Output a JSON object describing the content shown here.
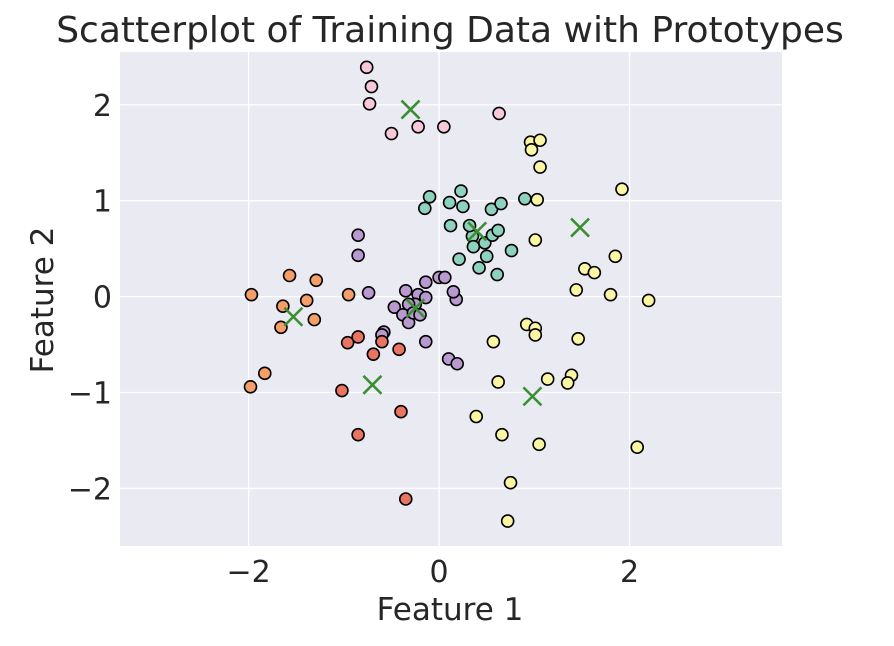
{
  "chart_data": {
    "type": "scatter",
    "title": "Scatterplot of Training Data with Prototypes",
    "xlabel": "Feature 1",
    "ylabel": "Feature 2",
    "xlim": [
      -3.35,
      3.6
    ],
    "ylim": [
      -2.6,
      2.55
    ],
    "xticks": [
      -2,
      0,
      2
    ],
    "yticks": [
      -2,
      -1,
      0,
      1,
      2
    ],
    "xtick_labels": [
      "−2",
      "0",
      "2"
    ],
    "ytick_labels": [
      "−2",
      "−1",
      "0",
      "1",
      "2"
    ],
    "grid": true,
    "legend": "none",
    "colors": {
      "background": "#eaeaf2",
      "grid": "#ffffff",
      "point_edge": "#000000",
      "prototype": "#3a8f32"
    },
    "series": [
      {
        "color": "#f7c8d9",
        "points": [
          [
            -0.76,
            2.39
          ],
          [
            -0.71,
            2.19
          ],
          [
            -0.73,
            2.01
          ],
          [
            -0.5,
            1.7
          ],
          [
            -0.22,
            1.77
          ],
          [
            0.05,
            1.77
          ],
          [
            0.63,
            1.91
          ]
        ]
      },
      {
        "color": "#8fd1bf",
        "points": [
          [
            -0.1,
            1.04
          ],
          [
            -0.15,
            0.92
          ],
          [
            0.11,
            0.98
          ],
          [
            0.23,
            1.1
          ],
          [
            0.25,
            0.94
          ],
          [
            0.35,
            0.63
          ],
          [
            0.12,
            0.74
          ],
          [
            0.21,
            0.39
          ],
          [
            0.36,
            0.52
          ],
          [
            0.42,
            0.3
          ],
          [
            0.48,
            0.56
          ],
          [
            0.5,
            0.42
          ],
          [
            0.56,
            0.64
          ],
          [
            0.61,
            0.23
          ],
          [
            0.55,
            0.91
          ],
          [
            0.65,
            0.97
          ],
          [
            0.62,
            0.69
          ],
          [
            0.76,
            0.48
          ],
          [
            0.9,
            1.02
          ],
          [
            0.32,
            0.74
          ]
        ]
      },
      {
        "color": "#fbf6a3",
        "points": [
          [
            0.96,
            1.61
          ],
          [
            1.06,
            1.63
          ],
          [
            0.97,
            1.53
          ],
          [
            1.06,
            1.35
          ],
          [
            1.03,
            1.01
          ],
          [
            1.01,
            0.59
          ],
          [
            1.92,
            1.12
          ],
          [
            1.53,
            0.29
          ],
          [
            1.63,
            0.25
          ],
          [
            1.85,
            0.42
          ],
          [
            1.44,
            0.07
          ],
          [
            1.8,
            0.02
          ],
          [
            2.2,
            -0.04
          ],
          [
            0.92,
            -0.29
          ],
          [
            1.01,
            -0.33
          ],
          [
            1.01,
            -0.4
          ],
          [
            1.46,
            -0.44
          ],
          [
            0.57,
            -0.47
          ],
          [
            0.62,
            -0.89
          ],
          [
            1.14,
            -0.86
          ],
          [
            1.39,
            -0.82
          ],
          [
            1.35,
            -0.9
          ],
          [
            0.39,
            -1.25
          ],
          [
            0.66,
            -1.44
          ],
          [
            1.05,
            -1.54
          ],
          [
            2.08,
            -1.57
          ],
          [
            0.75,
            -1.94
          ],
          [
            0.72,
            -2.34
          ]
        ]
      },
      {
        "color": "#b99ad0",
        "points": [
          [
            -0.85,
            0.64
          ],
          [
            -0.85,
            0.43
          ],
          [
            -0.74,
            0.04
          ],
          [
            -0.35,
            0.06
          ],
          [
            -0.22,
            0.02
          ],
          [
            -0.14,
            0.15
          ],
          [
            0.0,
            0.2
          ],
          [
            0.06,
            0.2
          ],
          [
            -0.14,
            -0.01
          ],
          [
            -0.25,
            -0.08
          ],
          [
            -0.32,
            -0.08
          ],
          [
            -0.47,
            -0.11
          ],
          [
            -0.38,
            -0.19
          ],
          [
            -0.32,
            -0.27
          ],
          [
            -0.27,
            -0.17
          ],
          [
            -0.2,
            -0.19
          ],
          [
            -0.58,
            -0.37
          ],
          [
            -0.6,
            -0.4
          ],
          [
            -0.14,
            -0.47
          ],
          [
            0.1,
            -0.65
          ],
          [
            0.19,
            -0.7
          ],
          [
            0.18,
            -0.03
          ],
          [
            0.15,
            0.05
          ]
        ]
      },
      {
        "color": "#f59e67",
        "points": [
          [
            -1.97,
            0.02
          ],
          [
            -1.57,
            0.22
          ],
          [
            -1.29,
            0.17
          ],
          [
            -1.39,
            -0.04
          ],
          [
            -0.95,
            0.02
          ],
          [
            -1.64,
            -0.1
          ],
          [
            -1.66,
            -0.32
          ],
          [
            -1.31,
            -0.24
          ],
          [
            -1.83,
            -0.8
          ],
          [
            -1.98,
            -0.94
          ]
        ]
      },
      {
        "color": "#e97461",
        "points": [
          [
            -0.96,
            -0.48
          ],
          [
            -0.85,
            -0.42
          ],
          [
            -0.6,
            -0.47
          ],
          [
            -0.69,
            -0.6
          ],
          [
            -0.42,
            -0.55
          ],
          [
            -1.02,
            -0.98
          ],
          [
            -0.4,
            -1.2
          ],
          [
            -0.85,
            -1.44
          ],
          [
            -0.35,
            -2.11
          ]
        ]
      }
    ],
    "prototypes": [
      [
        -0.3,
        1.95
      ],
      [
        0.4,
        0.68
      ],
      [
        1.48,
        0.72
      ],
      [
        -1.53,
        -0.21
      ],
      [
        -0.25,
        -0.12
      ],
      [
        -0.7,
        -0.92
      ],
      [
        0.98,
        -1.04
      ]
    ]
  }
}
